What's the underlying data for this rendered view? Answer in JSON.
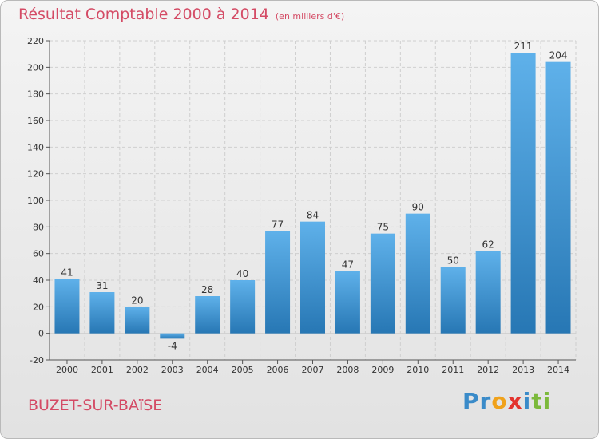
{
  "header": {
    "title": "Résultat Comptable 2000 à 2014",
    "subtitle": "(en milliers d'€)"
  },
  "footer": {
    "commune": "BUZET-SUR-BAïSE",
    "brand_letters": [
      {
        "char": "P",
        "color": "#3a8bc9"
      },
      {
        "char": "r",
        "color": "#3a8bc9"
      },
      {
        "char": "o",
        "color": "#f0a21b"
      },
      {
        "char": "x",
        "color": "#e3342f"
      },
      {
        "char": "i",
        "color": "#3a8bc9"
      },
      {
        "char": "t",
        "color": "#7cb93b"
      },
      {
        "char": "i",
        "color": "#7cb93b"
      }
    ]
  },
  "colors": {
    "bar_light": "#5fb1ea",
    "bar_dark": "#2777b4",
    "title": "#d44b65"
  },
  "chart_data": {
    "type": "bar",
    "categories": [
      "2000",
      "2001",
      "2002",
      "2003",
      "2004",
      "2005",
      "2006",
      "2007",
      "2008",
      "2009",
      "2010",
      "2011",
      "2012",
      "2013",
      "2014"
    ],
    "values": [
      41,
      31,
      20,
      -4,
      28,
      40,
      77,
      84,
      47,
      75,
      90,
      50,
      62,
      211,
      204
    ],
    "ylim": [
      -20,
      220
    ],
    "yticks": [
      -20,
      0,
      20,
      40,
      60,
      80,
      100,
      120,
      140,
      160,
      180,
      200,
      220
    ],
    "grid": true
  }
}
